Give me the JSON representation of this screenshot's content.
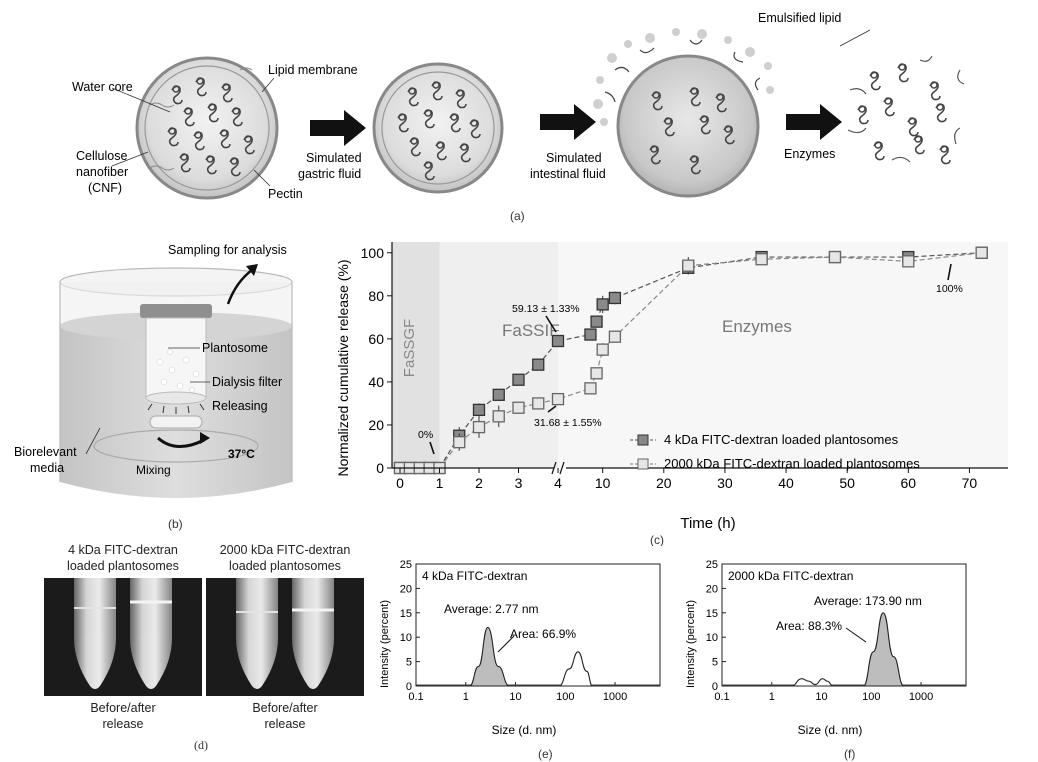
{
  "panel_a": {
    "letter": "(a)",
    "labels": {
      "water_core": "Water core",
      "lipid_membrane": "Lipid membrane",
      "cellulose_l1": "Cellulose",
      "cellulose_l2": "nanofiber",
      "cellulose_l3": "(CNF)",
      "pectin": "Pectin",
      "gastric_l1": "Simulated",
      "gastric_l2": "gastric fluid",
      "intestinal_l1": "Simulated",
      "intestinal_l2": "intestinal fluid",
      "emulsified": "Emulsified lipid",
      "enzymes": "Enzymes"
    }
  },
  "panel_b": {
    "letter": "(b)",
    "labels": {
      "sampling": "Sampling for analysis",
      "plantosome": "Plantosome",
      "dialysis": "Dialysis filter",
      "releasing": "Releasing",
      "media_l1": "Biorelevant",
      "media_l2": "media",
      "mixing": "Mixing",
      "temp": "37°C"
    }
  },
  "panel_c": {
    "letter": "(c)",
    "region_labels": {
      "fassgf": "FaSSGF",
      "fassif": "FaSSIF",
      "enzymes": "Enzymes"
    },
    "annotations": {
      "zero": "0%",
      "hundred": "100%",
      "a4k": "59.13 ± 1.33%",
      "a2000k": "31.68 ± 1.55%"
    }
  },
  "panel_d": {
    "letter": "(d)",
    "left_caption_l1": "4 kDa FITC-dextran",
    "left_caption_l2": "loaded plantosomes",
    "right_caption_l1": "2000 kDa FITC-dextran",
    "right_caption_l2": "loaded plantosomes",
    "left_bottom_l1": "Before/after",
    "left_bottom_l2": "release",
    "right_bottom_l1": "Before/after",
    "right_bottom_l2": "release"
  },
  "panel_e": {
    "letter": "(e)",
    "inner_title": "4 kDa FITC-dextran",
    "average": "Average: 2.77 nm",
    "area": "Area: 66.9%"
  },
  "panel_f": {
    "letter": "(f)",
    "inner_title": "2000 kDa FITC-dextran",
    "average": "Average: 173.90 nm",
    "area": "Area: 88.3%"
  },
  "chart_data": [
    {
      "type": "scatter",
      "panel": "c",
      "xlabel": "Time (h)",
      "ylabel": "Normalized cumulative release (%)",
      "x_ticks_left": [
        "0",
        "1",
        "2",
        "3",
        "4"
      ],
      "x_ticks_right": [
        "10",
        "20",
        "30",
        "40",
        "50",
        "60",
        "70"
      ],
      "y_ticks": [
        "0",
        "20",
        "40",
        "60",
        "80",
        "100"
      ],
      "ylim": [
        0,
        105
      ],
      "x_scale": "broken axis: linear 0–4 h, then linear ~4–75 h",
      "legend_position": "center-right",
      "series": [
        {
          "name": "4 kDa FITC-dextran loaded plantosomes",
          "x": [
            0,
            0.25,
            0.5,
            0.75,
            1,
            1.5,
            2,
            2.5,
            3,
            3.5,
            4,
            8,
            9,
            10,
            12,
            24,
            36,
            48,
            60,
            72
          ],
          "y": [
            0,
            0,
            0,
            0,
            0,
            15,
            27,
            34,
            41,
            48,
            59,
            62,
            68,
            76,
            79,
            93,
            98,
            98,
            98,
            100
          ],
          "err": [
            1,
            1,
            1,
            1,
            1,
            4,
            3,
            2,
            2,
            2,
            1.5,
            2,
            2,
            4,
            3,
            3,
            2,
            1,
            2,
            1
          ]
        },
        {
          "name": "2000 kDa FITC-dextran loaded plantosomes",
          "x": [
            0,
            0.25,
            0.5,
            0.75,
            1,
            1.5,
            2,
            2.5,
            3,
            3.5,
            4,
            8,
            9,
            10,
            12,
            24,
            36,
            48,
            60,
            72
          ],
          "y": [
            0,
            0,
            0,
            0,
            0,
            12,
            19,
            24,
            28,
            30,
            32,
            37,
            44,
            55,
            61,
            94,
            97,
            98,
            96,
            100
          ],
          "err": [
            1,
            1,
            1,
            1,
            1,
            4,
            5,
            5,
            2,
            2,
            1.5,
            2,
            2,
            3,
            2,
            4,
            2,
            1,
            2,
            1
          ]
        }
      ]
    },
    {
      "type": "area",
      "panel": "e",
      "xlabel": "Size (d. nm)",
      "ylabel": "Intensity (percent)",
      "x_ticks": [
        "0.1",
        "1",
        "10",
        "100",
        "1000"
      ],
      "y_ticks": [
        "0",
        "5",
        "10",
        "15",
        "20",
        "25"
      ],
      "x_scale": "log",
      "ylim": [
        0,
        25
      ],
      "series": [
        {
          "name": "",
          "x": [
            1.2,
            1.8,
            2.77,
            4.5,
            7.5,
            9
          ],
          "values": [
            0,
            4,
            12,
            4,
            0,
            0
          ]
        },
        {
          "name": "",
          "x": [
            75,
            120,
            180,
            270,
            350
          ],
          "values": [
            0,
            3.5,
            7,
            3,
            0
          ]
        }
      ]
    },
    {
      "type": "area",
      "panel": "f",
      "xlabel": "Size (d. nm)",
      "ylabel": "Intensity (percent)",
      "x_ticks": [
        "0.1",
        "1",
        "10",
        "100",
        "1000"
      ],
      "y_ticks": [
        "0",
        "5",
        "10",
        "15",
        "20",
        "25"
      ],
      "x_scale": "log",
      "ylim": [
        0,
        25
      ],
      "series": [
        {
          "name": "",
          "x": [
            2.5,
            4,
            5.5,
            7.5,
            10.5,
            13,
            17
          ],
          "values": [
            0,
            1.5,
            1.0,
            0.3,
            1.5,
            1.0,
            0
          ]
        },
        {
          "name": "",
          "x": [
            70,
            110,
            173.9,
            280,
            450
          ],
          "values": [
            0,
            7,
            15,
            6,
            0
          ]
        }
      ]
    }
  ]
}
